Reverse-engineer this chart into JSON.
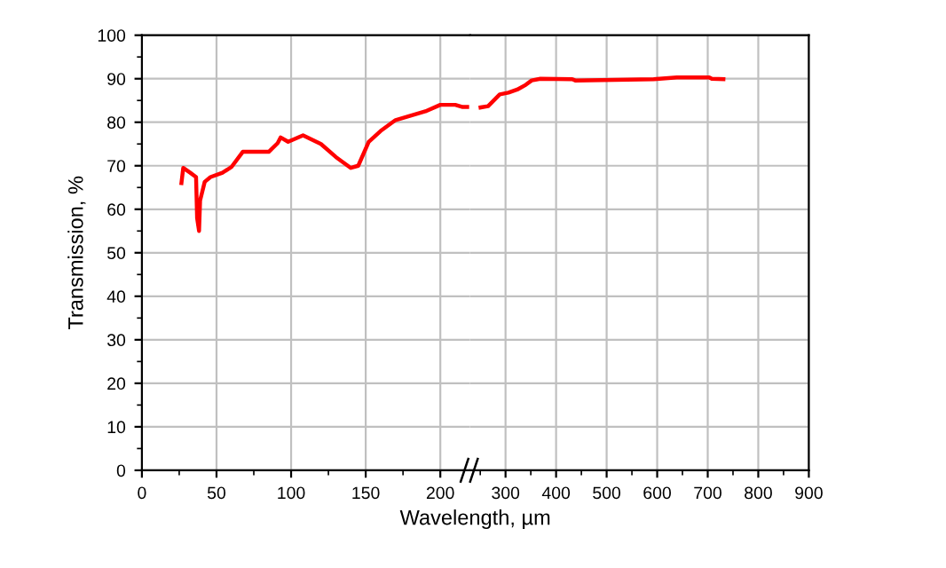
{
  "chart_data": [
    {
      "type": "line",
      "xlabel": "Wavelength, µm",
      "ylabel": "Transmission, %",
      "xlim": [
        0,
        220
      ],
      "xticks": [
        0,
        50,
        100,
        150,
        200
      ],
      "ylim": [
        0,
        100
      ],
      "yticks": [
        0,
        10,
        20,
        30,
        40,
        50,
        60,
        70,
        80,
        90,
        100
      ],
      "grid": true,
      "series": [
        {
          "color": "#ff0000",
          "x": [
            26.5,
            27.7,
            32.4,
            36.3,
            37,
            38.3,
            39,
            42.1,
            46,
            54,
            60,
            67.6,
            85,
            91,
            93,
            98,
            108,
            120,
            130,
            140,
            145,
            152,
            160,
            170,
            180,
            190,
            200,
            210,
            215,
            218
          ],
          "values": [
            66,
            69.5,
            68.4,
            67.4,
            58,
            55,
            62,
            66.3,
            67.4,
            68.4,
            69.7,
            73.2,
            73.2,
            75.2,
            76.5,
            75.5,
            77,
            75,
            72,
            69.5,
            70,
            75.5,
            78,
            80.5,
            81.5,
            82.5,
            84,
            84,
            83.5,
            83.5
          ]
        }
      ]
    },
    {
      "type": "line",
      "xlim": [
        230,
        900
      ],
      "xticks": [
        300,
        400,
        500,
        600,
        700,
        800,
        900
      ],
      "ylim": [
        0,
        100
      ],
      "yticks": [
        0,
        10,
        20,
        30,
        40,
        50,
        60,
        70,
        80,
        90,
        100
      ],
      "grid": true,
      "tick_labels": "x",
      "series": [
        {
          "color": "#ff0000",
          "x": [
            250.6,
            265.5,
            288.5,
            305.7,
            323,
            340,
            351.7,
            369,
            432,
            438,
            593,
            639,
            703,
            708,
            731
          ],
          "values": [
            83.4,
            83.7,
            86.4,
            86.8,
            87.5,
            88.6,
            89.6,
            90,
            89.9,
            89.6,
            89.9,
            90.3,
            90.3,
            90,
            89.9
          ]
        }
      ]
    }
  ]
}
